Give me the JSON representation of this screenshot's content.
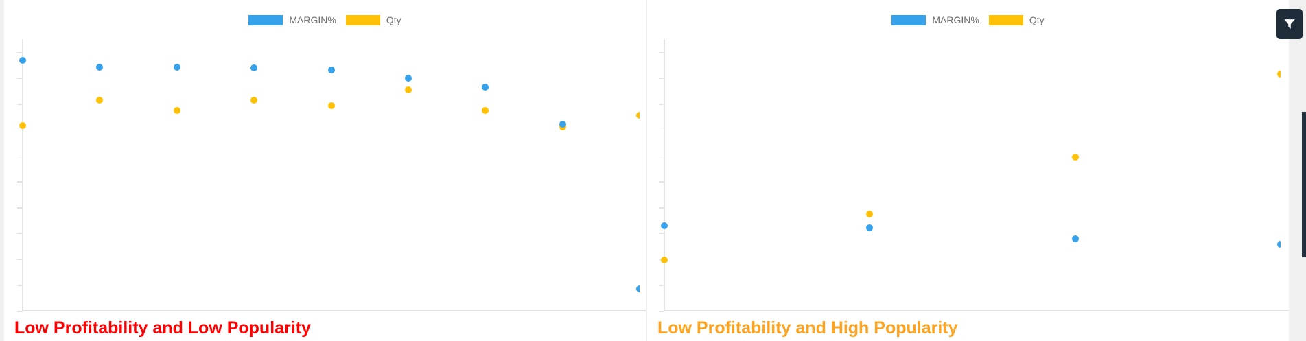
{
  "legend": {
    "margin_label": "MARGIN%",
    "qty_label": "Qty"
  },
  "colors": {
    "margin_series": "#36a2eb",
    "qty_series": "#ffc107",
    "left_title": "#ff0000",
    "right_title": "#ffa21d",
    "filter_button_bg": "#1f2d3a",
    "scrollbar_thumb": "#22303d"
  },
  "filter_button": {
    "icon": "funnel-filter-icon"
  },
  "charts": [
    {
      "title": "Low Profitability and Low Popularity",
      "title_color": "#ff0000",
      "chart_data": {
        "type": "scatter",
        "legend_position": "top-center",
        "x_labels_visible": false,
        "y_labels_visible": false,
        "grid": false,
        "xlim": [
          0,
          8
        ],
        "ylim": [
          0,
          105
        ],
        "y_tick_max": 100,
        "y_tick_interval": 10,
        "series": [
          {
            "name": "MARGIN%",
            "color": "#36a2eb",
            "points": [
              [
                0,
                96.8
              ],
              [
                1,
                94.2
              ],
              [
                2,
                94.2
              ],
              [
                3,
                93.9
              ],
              [
                4,
                93.1
              ],
              [
                5,
                89.9
              ],
              [
                6,
                86.5
              ],
              [
                7,
                72.1
              ],
              [
                8,
                8.5
              ]
            ]
          },
          {
            "name": "Qty",
            "color": "#ffc107",
            "points": [
              [
                0,
                71.6
              ],
              [
                1,
                81.4
              ],
              [
                2,
                77.5
              ],
              [
                3,
                81.4
              ],
              [
                4,
                79.3
              ],
              [
                5,
                85.4
              ],
              [
                6,
                77.5
              ],
              [
                7,
                71.1
              ],
              [
                8,
                75.6
              ]
            ]
          }
        ]
      }
    },
    {
      "title": "Low Profitability and High Popularity",
      "title_color": "#ffa21d",
      "chart_data": {
        "type": "scatter",
        "legend_position": "top-center",
        "x_labels_visible": false,
        "y_labels_visible": false,
        "grid": false,
        "xlim": [
          0,
          3
        ],
        "ylim": [
          0,
          105
        ],
        "y_tick_max": 100,
        "y_tick_interval": 10,
        "series": [
          {
            "name": "MARGIN%",
            "color": "#36a2eb",
            "points": [
              [
                0,
                32.9
              ],
              [
                1,
                32.1
              ],
              [
                2,
                27.9
              ],
              [
                3,
                25.7
              ]
            ]
          },
          {
            "name": "Qty",
            "color": "#ffc107",
            "points": [
              [
                0,
                19.6
              ],
              [
                1,
                37.4
              ],
              [
                2,
                59.4
              ],
              [
                3,
                91.5
              ]
            ]
          }
        ]
      }
    }
  ]
}
